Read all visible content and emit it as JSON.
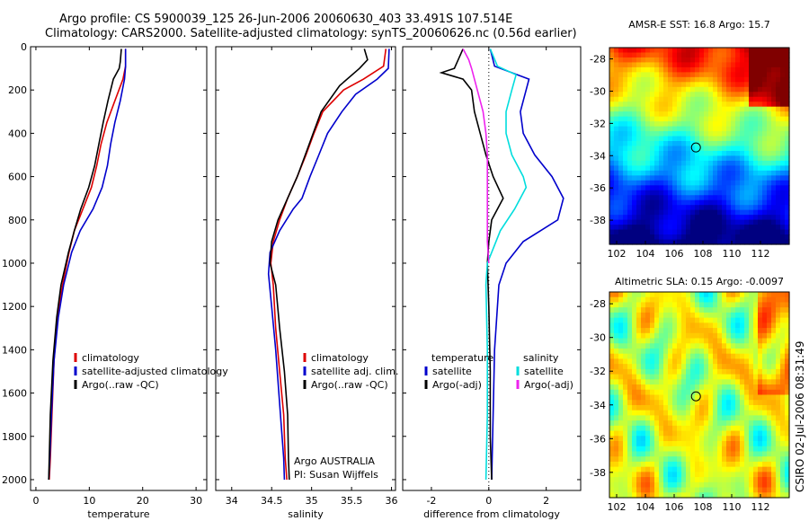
{
  "header": {
    "line1": "Argo profile: CS 5900039_125 26-Jun-2006 20060630_403 33.491S 107.514E",
    "line2": "Climatology: CARS2000. Satellite-adjusted climatology: synTS_20060626.nc (0.56d earlier)"
  },
  "footer": "CSIRO 02-Jul-2006 08:31:49",
  "chart_data": [
    {
      "type": "line",
      "id": "temperature",
      "xlabel": "temperature",
      "ylabel": "",
      "xlim": [
        -1,
        32
      ],
      "ylim": [
        2050,
        0
      ],
      "xticks": [
        0,
        10,
        20,
        30
      ],
      "yticks": [
        0,
        200,
        400,
        600,
        800,
        1000,
        1200,
        1400,
        1600,
        1800,
        2000
      ],
      "legend": [
        "climatology",
        "satellite-adjusted climatology",
        "Argo(..raw -QC)"
      ],
      "series": [
        {
          "name": "climatology",
          "color": "#dd0000",
          "points": [
            [
              16.8,
              10
            ],
            [
              16.8,
              90
            ],
            [
              16.3,
              150
            ],
            [
              14.8,
              250
            ],
            [
              13.3,
              350
            ],
            [
              12.2,
              450
            ],
            [
              11.4,
              550
            ],
            [
              10.4,
              650
            ],
            [
              8.8,
              750
            ],
            [
              7.2,
              850
            ],
            [
              6.2,
              950
            ],
            [
              5.0,
              1100
            ],
            [
              4.0,
              1250
            ],
            [
              3.4,
              1450
            ],
            [
              3.0,
              1700
            ],
            [
              2.7,
              1900
            ],
            [
              2.5,
              2000
            ]
          ]
        },
        {
          "name": "satellite-adjusted climatology",
          "color": "#0000cc",
          "points": [
            [
              16.8,
              10
            ],
            [
              16.8,
              90
            ],
            [
              16.6,
              150
            ],
            [
              15.8,
              250
            ],
            [
              14.8,
              350
            ],
            [
              14.0,
              450
            ],
            [
              13.4,
              550
            ],
            [
              12.4,
              650
            ],
            [
              10.7,
              750
            ],
            [
              8.3,
              850
            ],
            [
              6.7,
              950
            ],
            [
              5.2,
              1100
            ],
            [
              4.2,
              1250
            ],
            [
              3.4,
              1450
            ],
            [
              2.9,
              1700
            ],
            [
              2.6,
              1900
            ],
            [
              2.4,
              2000
            ]
          ]
        },
        {
          "name": "Argo(..raw -QC)",
          "color": "#000000",
          "points": [
            [
              16.0,
              10
            ],
            [
              15.8,
              70
            ],
            [
              15.6,
              100
            ],
            [
              14.5,
              150
            ],
            [
              13.5,
              250
            ],
            [
              12.6,
              350
            ],
            [
              11.8,
              450
            ],
            [
              11.0,
              550
            ],
            [
              9.9,
              650
            ],
            [
              8.4,
              750
            ],
            [
              7.2,
              850
            ],
            [
              6.1,
              950
            ],
            [
              4.7,
              1100
            ],
            [
              3.9,
              1250
            ],
            [
              3.2,
              1450
            ],
            [
              2.7,
              1700
            ],
            [
              2.5,
              1900
            ],
            [
              2.4,
              2000
            ]
          ]
        }
      ]
    },
    {
      "type": "line",
      "id": "salinity",
      "xlabel": "salinity",
      "ylabel": "",
      "xlim": [
        33.8,
        36.05
      ],
      "ylim": [
        2050,
        0
      ],
      "xticks": [
        34,
        34.5,
        35,
        35.5,
        36
      ],
      "legend": [
        "climatology",
        "satellite adj. clim.",
        "Argo(..raw -QC)"
      ],
      "annotation": [
        "Argo AUSTRALIA",
        "PI: Susan Wijffels"
      ],
      "series": [
        {
          "name": "climatology",
          "color": "#dd0000",
          "points": [
            [
              35.93,
              10
            ],
            [
              35.9,
              90
            ],
            [
              35.65,
              150
            ],
            [
              35.4,
              200
            ],
            [
              35.14,
              300
            ],
            [
              35.03,
              400
            ],
            [
              34.93,
              500
            ],
            [
              34.82,
              600
            ],
            [
              34.7,
              700
            ],
            [
              34.6,
              800
            ],
            [
              34.52,
              900
            ],
            [
              34.49,
              1000
            ],
            [
              34.52,
              1100
            ],
            [
              34.55,
              1300
            ],
            [
              34.6,
              1500
            ],
            [
              34.65,
              1700
            ],
            [
              34.67,
              1900
            ],
            [
              34.69,
              2000
            ]
          ]
        },
        {
          "name": "satellite adj. clim.",
          "color": "#0000cc",
          "points": [
            [
              35.97,
              10
            ],
            [
              35.96,
              100
            ],
            [
              35.82,
              150
            ],
            [
              35.55,
              220
            ],
            [
              35.38,
              300
            ],
            [
              35.2,
              400
            ],
            [
              35.09,
              500
            ],
            [
              34.98,
              600
            ],
            [
              34.88,
              700
            ],
            [
              34.77,
              750
            ],
            [
              34.6,
              850
            ],
            [
              34.48,
              950
            ],
            [
              34.46,
              1050
            ],
            [
              34.5,
              1200
            ],
            [
              34.55,
              1400
            ],
            [
              34.61,
              1700
            ],
            [
              34.65,
              1900
            ],
            [
              34.66,
              2000
            ]
          ]
        },
        {
          "name": "Argo(..raw -QC)",
          "color": "#000000",
          "points": [
            [
              35.66,
              10
            ],
            [
              35.7,
              60
            ],
            [
              35.6,
              100
            ],
            [
              35.35,
              180
            ],
            [
              35.12,
              300
            ],
            [
              35.02,
              400
            ],
            [
              34.92,
              500
            ],
            [
              34.82,
              600
            ],
            [
              34.7,
              700
            ],
            [
              34.58,
              800
            ],
            [
              34.5,
              900
            ],
            [
              34.48,
              1000
            ],
            [
              34.55,
              1100
            ],
            [
              34.6,
              1300
            ],
            [
              34.66,
              1500
            ],
            [
              34.7,
              1700
            ],
            [
              34.71,
              1900
            ],
            [
              34.72,
              2000
            ]
          ]
        }
      ]
    },
    {
      "type": "line",
      "id": "difference",
      "xlabel": "difference from climatology",
      "ylabel": "",
      "xlim": [
        -3.0,
        3.2
      ],
      "ylim": [
        2050,
        0
      ],
      "xticks": [
        -2,
        0,
        2
      ],
      "legend": [
        "temperature",
        "satellite",
        "Argo(-adj)",
        "salinity",
        "satellite",
        "Argo(-adj)"
      ],
      "series": [
        {
          "name": "satellite",
          "legend_group": "temperature",
          "color": "#0000cc",
          "points": [
            [
              0.05,
              10
            ],
            [
              0.2,
              90
            ],
            [
              1.4,
              150
            ],
            [
              1.3,
              200
            ],
            [
              1.1,
              300
            ],
            [
              1.2,
              400
            ],
            [
              1.6,
              500
            ],
            [
              2.2,
              600
            ],
            [
              2.6,
              700
            ],
            [
              2.4,
              800
            ],
            [
              1.2,
              900
            ],
            [
              0.6,
              1000
            ],
            [
              0.35,
              1100
            ],
            [
              0.2,
              1400
            ],
            [
              0.15,
              1700
            ],
            [
              0.1,
              2000
            ]
          ]
        },
        {
          "name": "Argo(-adj)",
          "legend_group": "temperature",
          "color": "#000000",
          "points": [
            [
              -0.9,
              10
            ],
            [
              -1.2,
              100
            ],
            [
              -1.65,
              120
            ],
            [
              -0.9,
              150
            ],
            [
              -0.6,
              200
            ],
            [
              -0.5,
              300
            ],
            [
              -0.3,
              400
            ],
            [
              -0.1,
              500
            ],
            [
              0.15,
              600
            ],
            [
              0.5,
              700
            ],
            [
              0.1,
              800
            ],
            [
              0.0,
              900
            ],
            [
              -0.05,
              1000
            ],
            [
              0.0,
              1200
            ],
            [
              0.05,
              1500
            ],
            [
              0.05,
              1800
            ],
            [
              0.1,
              2000
            ]
          ]
        },
        {
          "name": "satellite",
          "legend_group": "salinity",
          "color": "#00dddd",
          "points": [
            [
              0.05,
              10
            ],
            [
              0.3,
              90
            ],
            [
              0.95,
              130
            ],
            [
              0.8,
              200
            ],
            [
              0.6,
              300
            ],
            [
              0.6,
              400
            ],
            [
              0.8,
              500
            ],
            [
              1.2,
              600
            ],
            [
              1.3,
              650
            ],
            [
              0.9,
              750
            ],
            [
              0.4,
              850
            ],
            [
              -0.05,
              1000
            ],
            [
              -0.1,
              1100
            ],
            [
              -0.05,
              1400
            ],
            [
              -0.05,
              1700
            ],
            [
              -0.1,
              2000
            ]
          ]
        },
        {
          "name": "Argo(-adj)",
          "legend_group": "salinity",
          "color": "#ee22ee",
          "points": [
            [
              -0.9,
              10
            ],
            [
              -0.7,
              60
            ],
            [
              -0.6,
              100
            ],
            [
              -0.4,
              200
            ],
            [
              -0.2,
              300
            ],
            [
              -0.1,
              400
            ],
            [
              -0.05,
              500
            ],
            [
              -0.05,
              600
            ],
            [
              -0.05,
              700
            ],
            [
              -0.05,
              800
            ],
            [
              -0.05,
              900
            ],
            [
              0.0,
              1000
            ]
          ]
        }
      ]
    },
    {
      "type": "heatmap",
      "id": "sst-map",
      "title": "AMSR-E SST: 16.8 Argo: 15.7",
      "xticks": [
        102,
        104,
        106,
        108,
        110,
        112
      ],
      "yticks": [
        -28,
        -30,
        -32,
        -34,
        -36,
        -38
      ],
      "xlim": [
        101.5,
        114
      ],
      "ylim": [
        -39.5,
        -27.3
      ],
      "marker": {
        "lon": 107.514,
        "lat": -33.491
      },
      "colormap": "jet"
    },
    {
      "type": "heatmap",
      "id": "sla-map",
      "title": "Altimetric SLA: 0.15 Argo: -0.0097",
      "xticks": [
        102,
        104,
        106,
        108,
        110,
        112
      ],
      "yticks": [
        -28,
        -30,
        -32,
        -34,
        -36,
        -38
      ],
      "xlim": [
        101.5,
        114
      ],
      "ylim": [
        -39.5,
        -27.3
      ],
      "marker": {
        "lon": 107.514,
        "lat": -33.491
      },
      "colormap": "jet"
    }
  ]
}
